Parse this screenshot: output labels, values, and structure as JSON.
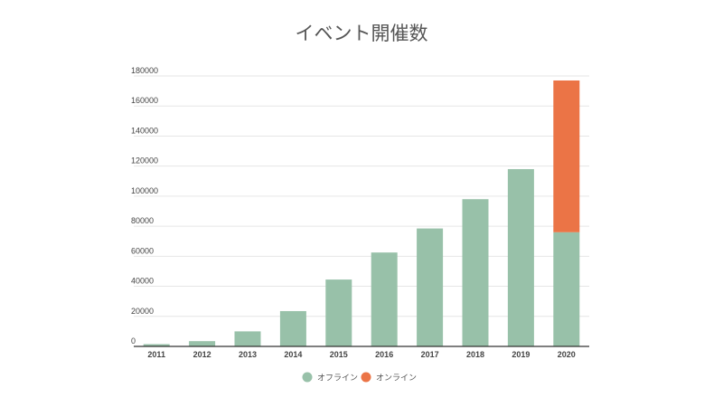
{
  "chart_data": {
    "type": "bar",
    "stacked": true,
    "title": "イベント開催数",
    "xlabel": "",
    "ylabel": "",
    "categories": [
      "2011",
      "2012",
      "2013",
      "2014",
      "2015",
      "2016",
      "2017",
      "2018",
      "2019",
      "2020"
    ],
    "series": [
      {
        "name": "オフライン",
        "color": "#98c1a9",
        "values": [
          1500,
          3500,
          10000,
          23500,
          44500,
          62500,
          78500,
          98000,
          118000,
          76000
        ]
      },
      {
        "name": "オンライン",
        "color": "#eb7446",
        "values": [
          0,
          0,
          0,
          0,
          0,
          0,
          0,
          0,
          0,
          101000
        ]
      }
    ],
    "ylim": [
      0,
      180000
    ],
    "yticks": [
      0,
      20000,
      40000,
      60000,
      80000,
      100000,
      120000,
      140000,
      160000,
      180000
    ],
    "grid": true,
    "legend_position": "bottom-center"
  }
}
